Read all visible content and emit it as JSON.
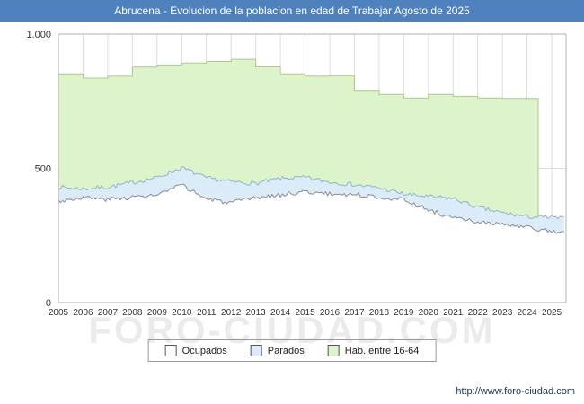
{
  "header": {
    "title": "Abrucena - Evolucion de la poblacion en edad de Trabajar Agosto de 2025"
  },
  "footer": {
    "url": "http://www.foro-ciudad.com"
  },
  "watermark": {
    "text": "FORO-CIUDAD.COM"
  },
  "colors": {
    "titlebar": "#4f81bd",
    "plot_border": "#b0b0b0",
    "gridline": "#dddddd",
    "axis_text": "#333333"
  },
  "chart_data": {
    "type": "area",
    "title": "Abrucena - Evolucion de la poblacion en edad de Trabajar Agosto de 2025",
    "xlabel": "",
    "ylabel": "",
    "ylim": [
      0,
      1000
    ],
    "yticks": [
      {
        "v": 0,
        "label": "0"
      },
      {
        "v": 500,
        "label": "500"
      },
      {
        "v": 1000,
        "label": "1.000"
      }
    ],
    "x_ticks": [
      2005,
      2006,
      2007,
      2008,
      2009,
      2010,
      2011,
      2012,
      2013,
      2014,
      2015,
      2016,
      2017,
      2018,
      2019,
      2020,
      2021,
      2022,
      2023,
      2024,
      2025
    ],
    "x_end": 2025.58,
    "grid": true,
    "legend_position": "bottom",
    "series": [
      {
        "name": "Hab. entre 16-64",
        "style": "step",
        "fill": "#ddf3c9",
        "stroke": "#a6cf7f",
        "years": [
          2005,
          2006,
          2007,
          2008,
          2009,
          2010,
          2011,
          2012,
          2013,
          2014,
          2015,
          2016,
          2017,
          2018,
          2019,
          2020,
          2021,
          2022,
          2023,
          2024
        ],
        "values": [
          852,
          836,
          843,
          877,
          885,
          892,
          898,
          906,
          878,
          852,
          843,
          845,
          790,
          775,
          762,
          775,
          768,
          762,
          760,
          760
        ],
        "end_x": 2024.45
      },
      {
        "name": "Parados",
        "style": "jagged",
        "fill": "#dcebf8",
        "stroke": "#8fb2d6",
        "anchor_years": [
          2005,
          2006,
          2007,
          2008,
          2009,
          2010,
          2011,
          2012,
          2013,
          2014,
          2015,
          2016,
          2017,
          2018,
          2019,
          2020,
          2021,
          2022,
          2023,
          2024,
          2025,
          2025.58
        ],
        "values": [
          430,
          424,
          430,
          447,
          466,
          502,
          464,
          450,
          444,
          462,
          466,
          449,
          439,
          427,
          404,
          394,
          388,
          354,
          334,
          320,
          317,
          312
        ],
        "noise": 8,
        "seed": 7
      },
      {
        "name": "Ocupados",
        "style": "jagged",
        "fill": "#ffffff",
        "stroke": "#8c8c8c",
        "anchor_years": [
          2005,
          2006,
          2007,
          2008,
          2009,
          2010,
          2011,
          2012,
          2013,
          2014,
          2015,
          2016,
          2017,
          2018,
          2019,
          2020,
          2021,
          2022,
          2023,
          2024,
          2025,
          2025.58
        ],
        "values": [
          378,
          392,
          384,
          393,
          400,
          438,
          386,
          371,
          390,
          401,
          413,
          404,
          403,
          393,
          383,
          345,
          315,
          300,
          290,
          280,
          264,
          258
        ],
        "noise": 8,
        "seed": 3
      }
    ],
    "legend": [
      {
        "label": "Ocupados",
        "fill": "#ffffff"
      },
      {
        "label": "Parados",
        "fill": "#dcebf8"
      },
      {
        "label": "Hab. entre 16-64",
        "fill": "#ddf3c9"
      }
    ]
  }
}
